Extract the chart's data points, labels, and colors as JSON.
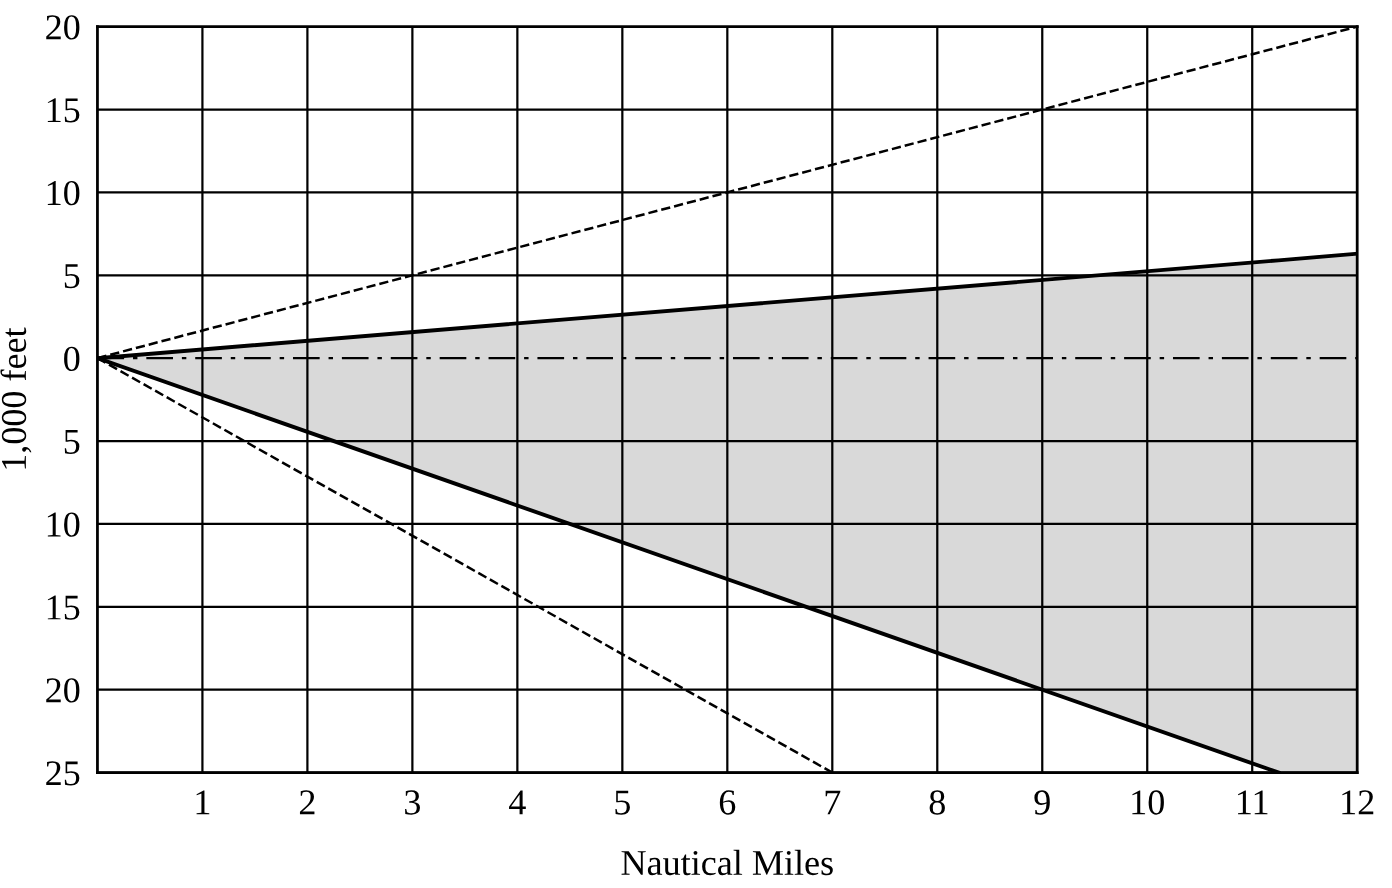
{
  "chart_data": {
    "type": "line",
    "xlabel": "Nautical Miles",
    "ylabel": "1,000 feet",
    "xlim": [
      0,
      12
    ],
    "ylim": [
      -25,
      20
    ],
    "xticks": [
      1,
      2,
      3,
      4,
      5,
      6,
      7,
      8,
      9,
      10,
      11,
      12
    ],
    "yticks": [
      {
        "value": -25,
        "label": "25"
      },
      {
        "value": -20,
        "label": "20"
      },
      {
        "value": -15,
        "label": "15"
      },
      {
        "value": -10,
        "label": "10"
      },
      {
        "value": -5,
        "label": "5"
      },
      0,
      5,
      10,
      15,
      20
    ],
    "grid": true,
    "marker": "none",
    "series": [
      {
        "color": "#000000",
        "line_style": "solid",
        "x": [
          0,
          11.25,
          12
        ],
        "values": [
          0,
          5.9,
          6.3
        ],
        "lower": [
          0,
          -25,
          -25
        ],
        "upper": [
          0,
          5.9,
          6.3
        ]
      },
      {
        "color": "#000000",
        "line_style": "solid",
        "x": [
          0,
          11.25
        ],
        "values": [
          0,
          -25
        ]
      },
      {
        "color": "#000000",
        "line_style": "dashed",
        "x": [
          0,
          12
        ],
        "values": [
          0,
          20
        ]
      },
      {
        "color": "#000000",
        "line_style": "dashed",
        "x": [
          0,
          7
        ],
        "values": [
          0,
          -25
        ]
      }
    ],
    "ref_lines": [
      {
        "axis": "y",
        "value": 0,
        "color": "#000000",
        "line_style": "dashdot"
      }
    ]
  }
}
